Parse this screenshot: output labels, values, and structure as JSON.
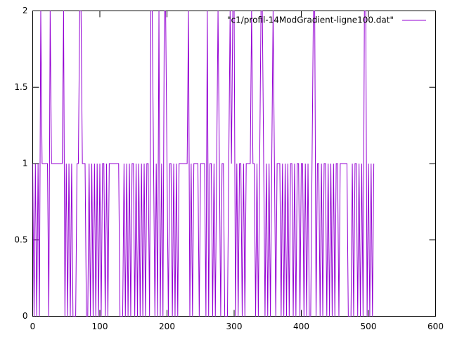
{
  "chart_data": {
    "type": "line",
    "x": [
      0,
      2,
      4,
      6,
      8,
      10,
      12,
      14,
      16,
      18,
      20,
      22,
      24,
      26,
      28,
      30,
      32,
      34,
      36,
      38,
      40,
      42,
      44,
      46,
      48,
      50,
      52,
      54,
      56,
      58,
      60,
      62,
      64,
      66,
      68,
      70,
      72,
      74,
      76,
      78,
      80,
      82,
      84,
      86,
      88,
      90,
      92,
      94,
      96,
      98,
      100,
      102,
      104,
      106,
      108,
      110,
      112,
      114,
      116,
      118,
      120,
      122,
      124,
      126,
      128,
      130,
      132,
      134,
      136,
      138,
      140,
      142,
      144,
      146,
      148,
      150,
      152,
      154,
      156,
      158,
      160,
      162,
      164,
      166,
      168,
      170,
      172,
      174,
      176,
      178,
      180,
      182,
      184,
      186,
      188,
      190,
      192,
      194,
      196,
      198,
      200,
      202,
      204,
      206,
      208,
      210,
      212,
      214,
      216,
      218,
      220,
      222,
      224,
      226,
      228,
      230,
      232,
      234,
      236,
      238,
      240,
      242,
      244,
      246,
      248,
      250,
      252,
      254,
      256,
      258,
      260,
      262,
      264,
      266,
      268,
      270,
      272,
      274,
      276,
      278,
      280,
      282,
      284,
      286,
      288,
      290,
      292,
      294,
      296,
      298,
      300,
      302,
      304,
      306,
      308,
      310,
      312,
      314,
      316,
      318,
      320,
      322,
      324,
      326,
      328,
      330,
      332,
      334,
      336,
      338,
      340,
      342,
      344,
      346,
      348,
      350,
      352,
      354,
      356,
      358,
      360,
      362,
      364,
      366,
      368,
      370,
      372,
      374,
      376,
      378,
      380,
      382,
      384,
      386,
      388,
      390,
      392,
      394,
      396,
      398,
      400,
      402,
      404,
      406,
      408,
      410,
      412,
      414,
      416,
      418,
      420,
      422,
      424,
      426,
      428,
      430,
      432,
      434,
      436,
      438,
      440,
      442,
      444,
      446,
      448,
      450,
      452,
      454,
      456,
      458,
      460,
      462,
      464,
      466,
      468,
      470,
      472,
      474,
      476,
      478,
      480,
      482,
      484,
      486,
      488,
      490,
      492,
      494,
      496,
      498,
      500,
      502,
      504,
      506,
      508
    ],
    "series": [
      {
        "name": "\"c1/profil-14ModGradient-ligne100.dat\"",
        "color": "#9400d3",
        "values": [
          1,
          0,
          1,
          0,
          1,
          0,
          2,
          1,
          1,
          1,
          1,
          1,
          0,
          2,
          1,
          1,
          1,
          1,
          1,
          1,
          1,
          1,
          1,
          2,
          0,
          1,
          0,
          1,
          0,
          1,
          0,
          0,
          0,
          1,
          1,
          2,
          2,
          1,
          1,
          1,
          0,
          0,
          1,
          0,
          1,
          0,
          1,
          0,
          1,
          0,
          1,
          0,
          1,
          1,
          0,
          1,
          0,
          1,
          1,
          1,
          1,
          1,
          1,
          1,
          1,
          0,
          0,
          0,
          1,
          0,
          1,
          0,
          1,
          0,
          1,
          1,
          0,
          1,
          0,
          1,
          0,
          1,
          0,
          1,
          0,
          1,
          1,
          0,
          2,
          2,
          1,
          0,
          1,
          0,
          2,
          0,
          1,
          0,
          2,
          2,
          1,
          0,
          1,
          1,
          0,
          1,
          0,
          1,
          0,
          1,
          1,
          1,
          1,
          1,
          1,
          1,
          2,
          0,
          1,
          0,
          1,
          1,
          1,
          1,
          0,
          1,
          1,
          1,
          1,
          0,
          2,
          0,
          1,
          1,
          0,
          1,
          0,
          1,
          2,
          1,
          0,
          1,
          1,
          0,
          0,
          0,
          1,
          2,
          1,
          2,
          2,
          0,
          1,
          0,
          1,
          1,
          0,
          1,
          0,
          1,
          1,
          1,
          1,
          2,
          1,
          1,
          0,
          1,
          0,
          1,
          2,
          2,
          1,
          0,
          1,
          0,
          1,
          0,
          1,
          2,
          1,
          0,
          1,
          1,
          1,
          0,
          1,
          0,
          1,
          0,
          1,
          0,
          1,
          1,
          0,
          1,
          0,
          1,
          1,
          0,
          1,
          1,
          0,
          1,
          0,
          1,
          0,
          0,
          1,
          2,
          2,
          0,
          1,
          1,
          0,
          1,
          0,
          1,
          1,
          0,
          1,
          0,
          1,
          0,
          1,
          0,
          1,
          1,
          0,
          1,
          1,
          1,
          1,
          1,
          1,
          0,
          0,
          0,
          1,
          0,
          1,
          1,
          0,
          1,
          0,
          1,
          0,
          2,
          2,
          0,
          1,
          0,
          1,
          0,
          1
        ]
      }
    ],
    "xlim": [
      0,
      600
    ],
    "xticks": [
      0,
      100,
      200,
      300,
      400,
      500,
      600
    ],
    "ylim": [
      0,
      2
    ],
    "yticks": [
      0,
      0.5,
      1,
      1.5,
      2
    ],
    "legend": "top-right"
  }
}
